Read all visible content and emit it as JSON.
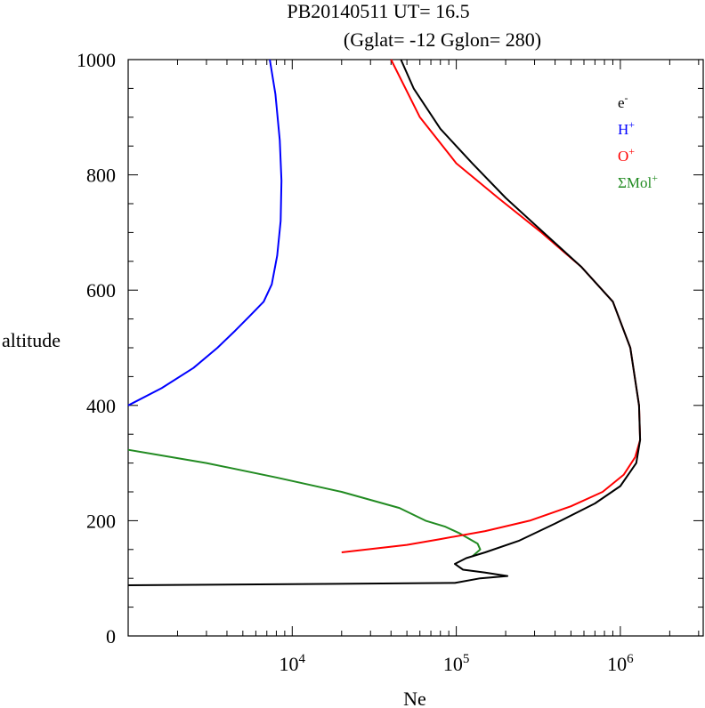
{
  "chart_data": {
    "type": "line",
    "title_line1": "PB20140511   UT=  16.5",
    "title_line2": "(Gglat= -12   Gglon=  280)",
    "xlabel": "Ne",
    "ylabel": "altitude",
    "xscale": "log",
    "xlim": [
      1000,
      3200000
    ],
    "ylim": [
      0,
      1000
    ],
    "x_ticks": [
      {
        "value": 10000,
        "base": "10",
        "exp": "4"
      },
      {
        "value": 100000,
        "base": "10",
        "exp": "5"
      },
      {
        "value": 1000000,
        "base": "10",
        "exp": "6"
      }
    ],
    "y_ticks": [
      {
        "value": 0,
        "label": "0"
      },
      {
        "value": 200,
        "label": "200"
      },
      {
        "value": 400,
        "label": "400"
      },
      {
        "value": 600,
        "label": "600"
      },
      {
        "value": 800,
        "label": "800"
      },
      {
        "value": 1000,
        "label": "1000"
      }
    ],
    "legend_position": "top-right",
    "series": [
      {
        "name": "e-",
        "base": "e",
        "sup": "-",
        "color": "#000000",
        "x": [
          1000,
          98000,
          140000,
          205000,
          150000,
          110000,
          98000,
          115000,
          150000,
          240000,
          400000,
          700000,
          1000000,
          1250000,
          1320000,
          1300000,
          1150000,
          900000,
          580000,
          340000,
          200000,
          125000,
          80000,
          55000,
          46000
        ],
        "y": [
          88,
          92,
          100,
          104,
          110,
          115,
          125,
          135,
          145,
          165,
          195,
          230,
          260,
          300,
          340,
          400,
          500,
          580,
          640,
          700,
          760,
          820,
          880,
          950,
          1000
        ]
      },
      {
        "name": "H+",
        "base": "H",
        "sup": "+",
        "color": "#0000ff",
        "x": [
          1000,
          1600,
          2500,
          3500,
          4500,
          5500,
          6700,
          7500,
          8100,
          8500,
          8600,
          8400,
          7900,
          7300
        ],
        "y": [
          400,
          430,
          465,
          500,
          530,
          555,
          580,
          610,
          660,
          720,
          790,
          860,
          940,
          1000
        ]
      },
      {
        "name": "O+",
        "base": "O",
        "sup": "+",
        "color": "#ff0000",
        "x": [
          20000,
          50000,
          80000,
          150000,
          280000,
          500000,
          780000,
          1050000,
          1230000,
          1320000,
          1300000,
          1150000,
          900000,
          580000,
          330000,
          180000,
          100000,
          60000,
          40000
        ],
        "y": [
          145,
          158,
          168,
          182,
          200,
          225,
          250,
          280,
          310,
          340,
          400,
          500,
          580,
          640,
          700,
          760,
          820,
          900,
          1000
        ]
      },
      {
        "name": "ΣMol+",
        "base": "ΣMol",
        "sup": "+",
        "color": "#228b22",
        "x": [
          1000,
          3000,
          8000,
          20000,
          45000,
          65000,
          85000,
          105000,
          135000,
          140000,
          125000
        ],
        "y": [
          323,
          300,
          275,
          250,
          222,
          200,
          190,
          178,
          160,
          150,
          138
        ]
      }
    ]
  }
}
